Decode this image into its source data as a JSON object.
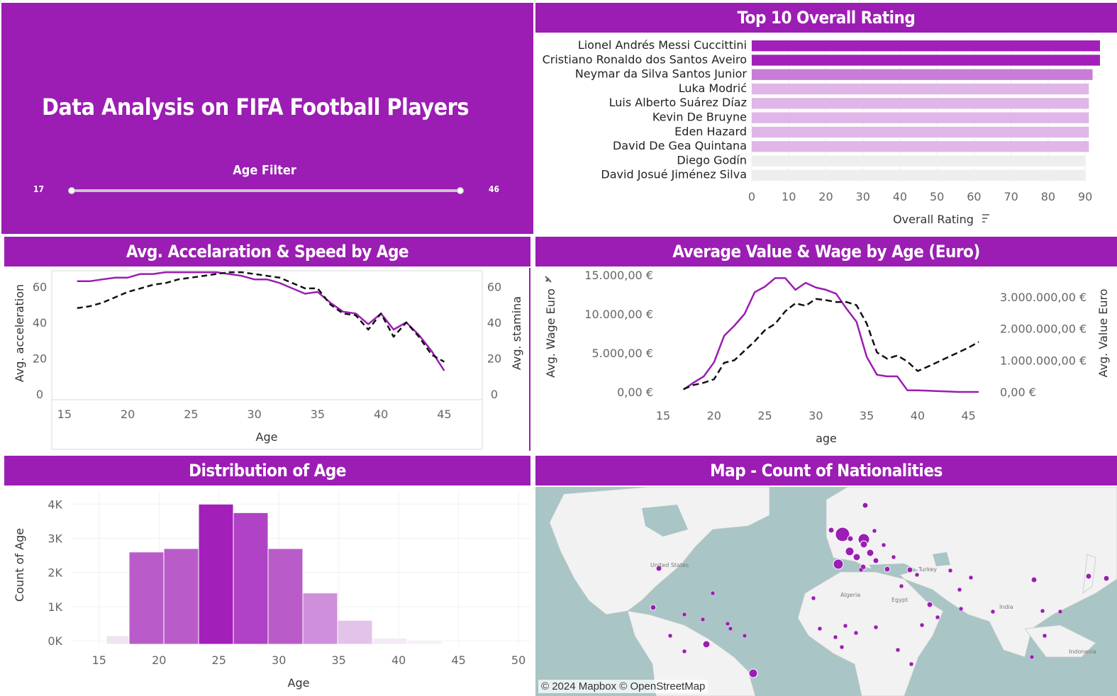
{
  "dashboard": {
    "title": "Data Analysis on FIFA Football Players",
    "filter": {
      "label": "Age Filter",
      "min": "17",
      "max": "46"
    }
  },
  "colors": {
    "brand": "#9b1db3",
    "purple_line": "#9b1db3",
    "dark_line": "#111111",
    "bar_dark": "#a21fba",
    "bar_mid": "#c77dd6",
    "bar_light": "#e0b6e8",
    "bar_grey": "#eeeeee",
    "map_water": "#a9c5c5",
    "map_land": "#f2f2f2"
  },
  "chart_data": [
    {
      "id": "top10",
      "type": "bar",
      "orientation": "horizontal",
      "title": "Top 10 Overall Rating",
      "xlabel": "Overall Rating",
      "xlim": [
        0,
        94
      ],
      "x_ticks": [
        "0",
        "10",
        "20",
        "30",
        "40",
        "50",
        "60",
        "70",
        "80",
        "90"
      ],
      "categories": [
        "Lionel Andrés Messi Cuccittini",
        "Cristiano Ronaldo dos Santos Aveiro",
        "Neymar da Silva Santos Junior",
        "Luka Modrić",
        "Luis Alberto Suárez Díaz",
        "Kevin De Bruyne",
        "Eden Hazard",
        "David De Gea Quintana",
        "Diego Godín",
        "David Josué Jiménez Silva"
      ],
      "values": [
        94,
        94,
        92,
        91,
        91,
        91,
        91,
        91,
        90,
        90
      ],
      "bar_colors": [
        "#a21fba",
        "#a21fba",
        "#c77dd6",
        "#e0b6e8",
        "#e0b6e8",
        "#e0b6e8",
        "#e0b6e8",
        "#e0b6e8",
        "#eeeeee",
        "#eeeeee"
      ]
    },
    {
      "id": "accel",
      "type": "line",
      "title": "Avg. Accelaration & Speed by Age",
      "xlabel": "Age",
      "ylabel": "Avg. acceleration",
      "ylabel_right": "Avg. stamina",
      "xlim": [
        14,
        48
      ],
      "ylim": [
        0,
        72
      ],
      "x_ticks": [
        "15",
        "20",
        "25",
        "30",
        "35",
        "40",
        "45"
      ],
      "y_ticks": [
        "0",
        "20",
        "40",
        "60"
      ],
      "y_ticks_right": [
        "0",
        "20",
        "40",
        "60"
      ],
      "x": [
        16,
        17,
        18,
        19,
        20,
        21,
        22,
        23,
        24,
        25,
        26,
        27,
        28,
        29,
        30,
        31,
        32,
        33,
        34,
        35,
        36,
        37,
        38,
        39,
        40,
        41,
        42,
        43,
        44,
        45
      ],
      "series": [
        {
          "values": [
            63,
            63,
            64,
            65,
            65,
            67,
            67,
            68,
            68,
            68,
            68,
            68,
            67,
            66,
            64,
            64,
            62,
            59,
            56,
            57,
            51,
            46,
            45,
            39,
            45,
            36,
            40,
            33,
            24,
            13
          ]
        },
        {
          "values": [
            48,
            49,
            51,
            54,
            57,
            59,
            61,
            62,
            64,
            65,
            66,
            67,
            68,
            68,
            67,
            66,
            65,
            62,
            59,
            59,
            50,
            45,
            44,
            36,
            45,
            32,
            40,
            32,
            22,
            18
          ]
        }
      ]
    },
    {
      "id": "valuewage",
      "type": "line",
      "title": "Average Value & Wage by Age (Euro)",
      "xlabel": "age",
      "ylabel": "Avg. Wage Euro",
      "ylabel_right": "Avg. Value Euro",
      "xlim": [
        15,
        46
      ],
      "ylim": [
        0,
        15000
      ],
      "ylim_right": [
        0,
        3000000
      ],
      "x_ticks": [
        "15",
        "20",
        "25",
        "30",
        "35",
        "40",
        "45"
      ],
      "y_ticks": [
        "0,00 €",
        "5.000,00 €",
        "10.000,00 €",
        "15.000,00 €"
      ],
      "y_ticks_right": [
        "0,00 €",
        "1.000.000,00 €",
        "2.000.000,00 €",
        "3.000.000,00 €"
      ],
      "x": [
        17,
        18,
        19,
        20,
        21,
        22,
        23,
        24,
        25,
        26,
        27,
        28,
        29,
        30,
        31,
        32,
        33,
        34,
        35,
        36,
        37,
        38,
        39,
        40,
        41,
        42,
        43,
        44,
        45,
        46
      ],
      "series": [
        {
          "axis": "left",
          "values": [
            300,
            1200,
            2000,
            3800,
            7200,
            8500,
            10000,
            12800,
            13500,
            14600,
            14600,
            13100,
            14000,
            13400,
            13100,
            12600,
            10700,
            9000,
            4500,
            2200,
            2000,
            2000,
            200,
            200,
            150,
            100,
            50,
            0,
            0,
            0
          ]
        },
        {
          "axis": "right",
          "values": [
            90000,
            220000,
            290000,
            400000,
            920000,
            1000000,
            1300000,
            1600000,
            1950000,
            2150000,
            2550000,
            2800000,
            2720000,
            2940000,
            2900000,
            2840000,
            2840000,
            2740000,
            2160000,
            1250000,
            1050000,
            1150000,
            960000,
            660000,
            800000,
            950000,
            1100000,
            1250000,
            1400000,
            1580000
          ]
        }
      ]
    },
    {
      "id": "agedist",
      "type": "bar",
      "title": "Distribution of Age",
      "xlabel": "Age",
      "ylabel": "Count of Age",
      "xlim": [
        13,
        51
      ],
      "ylim": [
        -100,
        4400
      ],
      "x_ticks": [
        "15",
        "20",
        "25",
        "30",
        "35",
        "40",
        "45",
        "50"
      ],
      "y_ticks": [
        "0K",
        "1K",
        "2K",
        "3K",
        "4K"
      ],
      "bins": [
        [
          15.6,
          17.5
        ],
        [
          17.5,
          20.4
        ],
        [
          20.4,
          23.3
        ],
        [
          23.3,
          26.2
        ],
        [
          26.2,
          29.1
        ],
        [
          29.1,
          32.0
        ],
        [
          32.0,
          34.9
        ],
        [
          34.9,
          37.8
        ],
        [
          37.8,
          40.7
        ],
        [
          40.7,
          43.6
        ]
      ],
      "values": [
        150,
        2600,
        2700,
        4000,
        3750,
        2700,
        1400,
        600,
        80,
        20
      ],
      "bar_colors": [
        "#efe3f2",
        "#b95cc9",
        "#b95cc9",
        "#a21fba",
        "#b043c5",
        "#b95cc9",
        "#cf8fdb",
        "#e2c3e9",
        "#f3eaf5",
        "#f6f0f7"
      ]
    },
    {
      "id": "map",
      "type": "scatter",
      "title": "Map - Count of Nationalities",
      "attribution": "© 2024 Mapbox © OpenStreetMap",
      "place_labels": [
        "United States",
        "Algeria",
        "Egypt",
        "India",
        "Turkey",
        "Indonesia"
      ]
    }
  ]
}
